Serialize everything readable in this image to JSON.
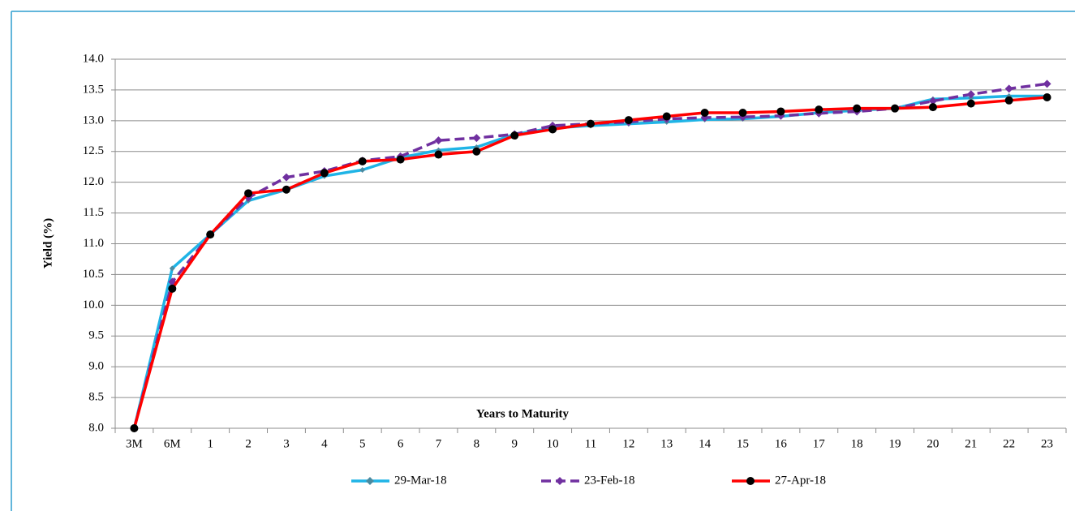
{
  "chart_data": {
    "type": "line",
    "x_label": "Years to Maturity",
    "y_label": "Yield (%)",
    "categories": [
      "3M",
      "6M",
      "1",
      "2",
      "3",
      "4",
      "5",
      "6",
      "7",
      "8",
      "9",
      "10",
      "11",
      "12",
      "13",
      "14",
      "15",
      "16",
      "17",
      "18",
      "19",
      "20",
      "21",
      "22",
      "23"
    ],
    "series": [
      {
        "name": "29-Mar-18",
        "color": "#1fb4e6",
        "marker": "diamond",
        "marker_color": "#4a8aa0",
        "dash": false,
        "values": [
          8.0,
          10.6,
          11.15,
          11.7,
          11.88,
          12.1,
          12.2,
          12.4,
          12.52,
          12.57,
          12.78,
          12.88,
          12.92,
          12.95,
          12.98,
          13.02,
          13.03,
          13.07,
          13.13,
          13.17,
          13.2,
          13.35,
          13.37,
          13.4,
          13.4
        ]
      },
      {
        "name": "23-Feb-18",
        "color": "#7030a0",
        "marker": "diamond",
        "marker_color": "#7030a0",
        "dash": true,
        "values": [
          8.0,
          10.38,
          11.15,
          11.75,
          12.08,
          12.18,
          12.35,
          12.42,
          12.68,
          12.72,
          12.78,
          12.92,
          12.95,
          12.98,
          13.03,
          13.05,
          13.06,
          13.08,
          13.12,
          13.15,
          13.2,
          13.32,
          13.43,
          13.52,
          13.6
        ]
      },
      {
        "name": "27-Apr-18",
        "color": "#ff0000",
        "marker": "circle",
        "marker_color": "#000000",
        "dash": false,
        "values": [
          8.0,
          10.27,
          11.15,
          11.82,
          11.88,
          12.15,
          12.34,
          12.37,
          12.45,
          12.5,
          12.76,
          12.86,
          12.95,
          13.01,
          13.07,
          13.13,
          13.13,
          13.15,
          13.18,
          13.2,
          13.2,
          13.22,
          13.28,
          13.33,
          13.38
        ]
      }
    ],
    "ylim": [
      8,
      14
    ],
    "yticks": [
      {
        "value": 8,
        "label": "8.0"
      },
      8.5,
      {
        "value": 9,
        "label": "9.0"
      },
      9.5,
      {
        "value": 10,
        "label": "10.0"
      },
      10.5,
      {
        "value": 11,
        "label": "11.0"
      },
      11.5,
      {
        "value": 12,
        "label": "12.0"
      },
      12.5,
      {
        "value": 13,
        "label": "13.0"
      },
      13.5,
      {
        "value": 14,
        "label": "14.0"
      }
    ],
    "grid": true,
    "legend": "bottom"
  }
}
